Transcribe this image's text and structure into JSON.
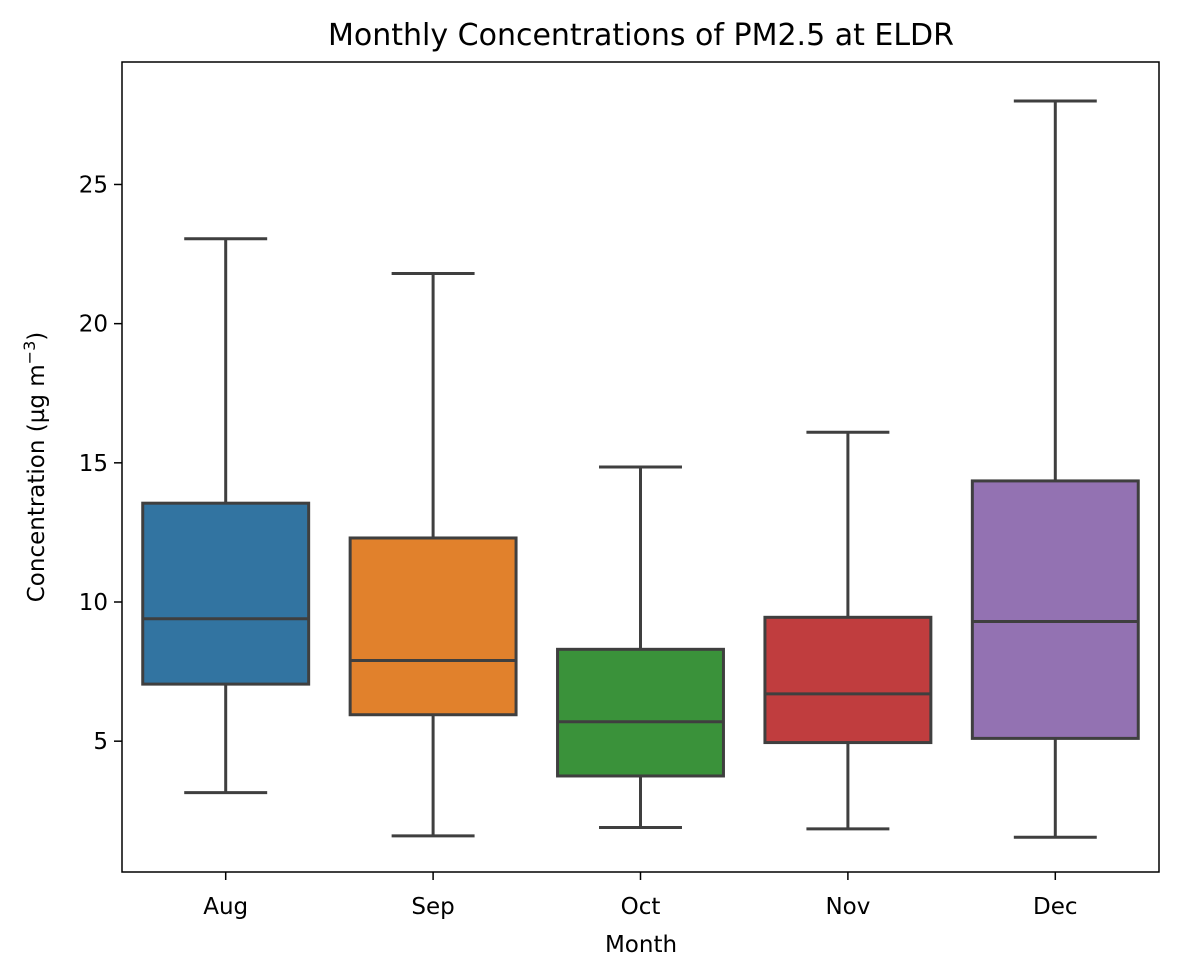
{
  "chart_data": {
    "type": "box",
    "title": "Monthly Concentrations of PM2.5 at ELDR",
    "xlabel": "Month",
    "ylabel": {
      "base": "Concentration (µg m",
      "superscript": "−3",
      "suffix": ")"
    },
    "categories": [
      "Aug",
      "Sep",
      "Oct",
      "Nov",
      "Dec"
    ],
    "yticks": [
      5,
      10,
      15,
      20,
      25
    ],
    "ylim": [
      0.3,
      29.4
    ],
    "grid": false,
    "legend": "none",
    "boxes": [
      {
        "category": "Aug",
        "whisker_low": 3.15,
        "q1": 7.05,
        "median": 9.4,
        "q3": 13.55,
        "whisker_high": 23.05,
        "color": "#3274a1"
      },
      {
        "category": "Sep",
        "whisker_low": 1.6,
        "q1": 5.95,
        "median": 7.9,
        "q3": 12.3,
        "whisker_high": 21.8,
        "color": "#e1812c"
      },
      {
        "category": "Oct",
        "whisker_low": 1.9,
        "q1": 3.75,
        "median": 5.7,
        "q3": 8.3,
        "whisker_high": 14.85,
        "color": "#3a923a"
      },
      {
        "category": "Nov",
        "whisker_low": 1.85,
        "q1": 4.95,
        "median": 6.7,
        "q3": 9.45,
        "whisker_high": 16.1,
        "color": "#c03d3e"
      },
      {
        "category": "Dec",
        "whisker_low": 1.55,
        "q1": 5.1,
        "median": 9.3,
        "q3": 14.35,
        "whisker_high": 28.0,
        "color": "#9372b2"
      }
    ],
    "line_color": "#3f3f3f"
  }
}
